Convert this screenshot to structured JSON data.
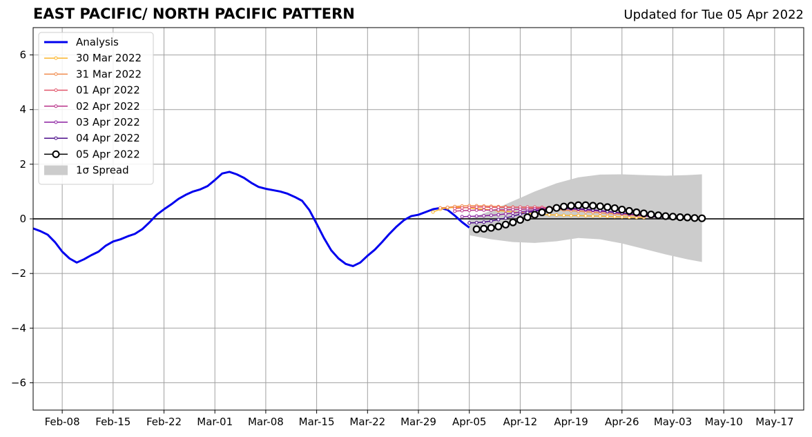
{
  "header": {
    "title": "EAST PACIFIC/ NORTH PACIFIC PATTERN",
    "updated": "Updated for Tue 05 Apr 2022"
  },
  "chart_data": {
    "type": "line",
    "title": "EAST PACIFIC/ NORTH PACIFIC PATTERN",
    "xlabel": "",
    "ylabel": "",
    "xlim": [
      "2022-02-04",
      "2022-05-21"
    ],
    "ylim": [
      -7,
      7
    ],
    "grid": true,
    "legend_position": "upper-left",
    "x_ticks": [
      "Feb-08",
      "Feb-15",
      "Feb-22",
      "Mar-01",
      "Mar-08",
      "Mar-15",
      "Mar-22",
      "Mar-29",
      "Apr-05",
      "Apr-12",
      "Apr-19",
      "Apr-26",
      "May-03",
      "May-10",
      "May-17"
    ],
    "x_tick_dates": [
      "2022-02-08",
      "2022-02-15",
      "2022-02-22",
      "2022-03-01",
      "2022-03-08",
      "2022-03-15",
      "2022-03-22",
      "2022-03-29",
      "2022-04-05",
      "2022-04-12",
      "2022-04-19",
      "2022-04-26",
      "2022-05-03",
      "2022-05-10",
      "2022-05-17"
    ],
    "y_ticks": [
      -6,
      -4,
      -2,
      0,
      2,
      4,
      6
    ],
    "y_tick_labels": [
      "−6",
      "−4",
      "−2",
      "0",
      "2",
      "4",
      "6"
    ],
    "zero_line": true,
    "analysis": {
      "name": "Analysis",
      "color": "#0000ee",
      "x": [
        "2022-02-04",
        "2022-02-05",
        "2022-02-06",
        "2022-02-07",
        "2022-02-08",
        "2022-02-09",
        "2022-02-10",
        "2022-02-11",
        "2022-02-12",
        "2022-02-13",
        "2022-02-14",
        "2022-02-15",
        "2022-02-16",
        "2022-02-17",
        "2022-02-18",
        "2022-02-19",
        "2022-02-20",
        "2022-02-21",
        "2022-02-22",
        "2022-02-23",
        "2022-02-24",
        "2022-02-25",
        "2022-02-26",
        "2022-02-27",
        "2022-02-28",
        "2022-03-01",
        "2022-03-02",
        "2022-03-03",
        "2022-03-04",
        "2022-03-05",
        "2022-03-06",
        "2022-03-07",
        "2022-03-08",
        "2022-03-09",
        "2022-03-10",
        "2022-03-11",
        "2022-03-12",
        "2022-03-13",
        "2022-03-14",
        "2022-03-15",
        "2022-03-16",
        "2022-03-17",
        "2022-03-18",
        "2022-03-19",
        "2022-03-20",
        "2022-03-21",
        "2022-03-22",
        "2022-03-23",
        "2022-03-24",
        "2022-03-25",
        "2022-03-26",
        "2022-03-27",
        "2022-03-28",
        "2022-03-29",
        "2022-03-30",
        "2022-03-31",
        "2022-04-01",
        "2022-04-02",
        "2022-04-03",
        "2022-04-04",
        "2022-04-05"
      ],
      "y": [
        -0.35,
        -0.45,
        -0.58,
        -0.85,
        -1.2,
        -1.45,
        -1.6,
        -1.48,
        -1.33,
        -1.2,
        -0.98,
        -0.83,
        -0.75,
        -0.64,
        -0.55,
        -0.38,
        -0.13,
        0.15,
        0.35,
        0.53,
        0.73,
        0.88,
        1.0,
        1.08,
        1.2,
        1.42,
        1.66,
        1.72,
        1.63,
        1.5,
        1.32,
        1.17,
        1.1,
        1.05,
        1.0,
        0.92,
        0.8,
        0.66,
        0.32,
        -0.18,
        -0.7,
        -1.15,
        -1.45,
        -1.65,
        -1.73,
        -1.6,
        -1.35,
        -1.13,
        -0.85,
        -0.55,
        -0.28,
        -0.05,
        0.1,
        0.15,
        0.25,
        0.35,
        0.4,
        0.33,
        0.12,
        -0.12,
        -0.32
      ]
    },
    "forecasts": [
      {
        "name": "30 Mar 2022",
        "color": "#fbb52b",
        "x": [
          "2022-03-31",
          "2022-04-01",
          "2022-04-02",
          "2022-04-03",
          "2022-04-04",
          "2022-04-05",
          "2022-04-06",
          "2022-04-07",
          "2022-04-08",
          "2022-04-09",
          "2022-04-10",
          "2022-04-11",
          "2022-04-12",
          "2022-04-13",
          "2022-04-14",
          "2022-04-15",
          "2022-04-16",
          "2022-04-17",
          "2022-04-18",
          "2022-04-19",
          "2022-04-20",
          "2022-04-21",
          "2022-04-22",
          "2022-04-23",
          "2022-04-24",
          "2022-04-25",
          "2022-04-26",
          "2022-04-27",
          "2022-04-28",
          "2022-04-29"
        ],
        "y": [
          0.25,
          0.35,
          0.4,
          0.42,
          0.42,
          0.4,
          0.37,
          0.35,
          0.33,
          0.3,
          0.28,
          0.25,
          0.23,
          0.2,
          0.18,
          0.16,
          0.15,
          0.14,
          0.13,
          0.12,
          0.12,
          0.11,
          0.1,
          0.1,
          0.09,
          0.08,
          0.07,
          0.06,
          0.05,
          0.05
        ]
      },
      {
        "name": "31 Mar 2022",
        "color": "#f08a4b",
        "x": [
          "2022-04-01",
          "2022-04-02",
          "2022-04-03",
          "2022-04-04",
          "2022-04-05",
          "2022-04-06",
          "2022-04-07",
          "2022-04-08",
          "2022-04-09",
          "2022-04-10",
          "2022-04-11",
          "2022-04-12",
          "2022-04-13",
          "2022-04-14",
          "2022-04-15",
          "2022-04-16",
          "2022-04-17",
          "2022-04-18",
          "2022-04-19",
          "2022-04-20",
          "2022-04-21",
          "2022-04-22",
          "2022-04-23",
          "2022-04-24",
          "2022-04-25",
          "2022-04-26",
          "2022-04-27",
          "2022-04-28",
          "2022-04-29",
          "2022-04-30"
        ],
        "y": [
          0.4,
          0.42,
          0.45,
          0.47,
          0.48,
          0.48,
          0.47,
          0.46,
          0.45,
          0.44,
          0.43,
          0.42,
          0.41,
          0.4,
          0.38,
          0.36,
          0.34,
          0.32,
          0.3,
          0.28,
          0.26,
          0.24,
          0.22,
          0.2,
          0.18,
          0.16,
          0.14,
          0.12,
          0.1,
          0.08
        ]
      },
      {
        "name": "01 Apr 2022",
        "color": "#e1546a",
        "x": [
          "2022-04-03",
          "2022-04-04",
          "2022-04-05",
          "2022-04-06",
          "2022-04-07",
          "2022-04-08",
          "2022-04-09",
          "2022-04-10",
          "2022-04-11",
          "2022-04-12",
          "2022-04-13",
          "2022-04-14",
          "2022-04-15",
          "2022-04-16",
          "2022-04-17",
          "2022-04-18",
          "2022-04-19",
          "2022-04-20",
          "2022-04-21",
          "2022-04-22",
          "2022-04-23",
          "2022-04-24",
          "2022-04-25",
          "2022-04-26",
          "2022-04-27",
          "2022-04-28",
          "2022-04-29",
          "2022-04-30"
        ],
        "y": [
          0.38,
          0.4,
          0.42,
          0.43,
          0.43,
          0.42,
          0.42,
          0.42,
          0.42,
          0.43,
          0.43,
          0.43,
          0.42,
          0.41,
          0.4,
          0.38,
          0.36,
          0.34,
          0.32,
          0.3,
          0.28,
          0.26,
          0.23,
          0.2,
          0.17,
          0.14,
          0.11,
          0.08
        ]
      },
      {
        "name": "02 Apr 2022",
        "color": "#b83289",
        "x": [
          "2022-04-03",
          "2022-04-04",
          "2022-04-05",
          "2022-04-06",
          "2022-04-07",
          "2022-04-08",
          "2022-04-09",
          "2022-04-10",
          "2022-04-11",
          "2022-04-12",
          "2022-04-13",
          "2022-04-14",
          "2022-04-15",
          "2022-04-16",
          "2022-04-17",
          "2022-04-18",
          "2022-04-19",
          "2022-04-20",
          "2022-04-21",
          "2022-04-22",
          "2022-04-23",
          "2022-04-24",
          "2022-04-25",
          "2022-04-26",
          "2022-04-27",
          "2022-04-28",
          "2022-04-29",
          "2022-04-30"
        ],
        "y": [
          0.28,
          0.3,
          0.31,
          0.32,
          0.32,
          0.32,
          0.33,
          0.33,
          0.34,
          0.35,
          0.36,
          0.37,
          0.38,
          0.38,
          0.38,
          0.37,
          0.36,
          0.35,
          0.33,
          0.31,
          0.29,
          0.26,
          0.23,
          0.2,
          0.17,
          0.14,
          0.11,
          0.08
        ]
      },
      {
        "name": "03 Apr 2022",
        "color": "#8b1fa0",
        "x": [
          "2022-04-04",
          "2022-04-05",
          "2022-04-06",
          "2022-04-07",
          "2022-04-08",
          "2022-04-09",
          "2022-04-10",
          "2022-04-11",
          "2022-04-12",
          "2022-04-13",
          "2022-04-14",
          "2022-04-15",
          "2022-04-16",
          "2022-04-17",
          "2022-04-18",
          "2022-04-19",
          "2022-04-20",
          "2022-04-21",
          "2022-04-22",
          "2022-04-23",
          "2022-04-24",
          "2022-04-25",
          "2022-04-26",
          "2022-04-27",
          "2022-04-28",
          "2022-04-29",
          "2022-04-30",
          "2022-05-01"
        ],
        "y": [
          0.08,
          0.09,
          0.1,
          0.11,
          0.13,
          0.15,
          0.18,
          0.21,
          0.25,
          0.28,
          0.31,
          0.34,
          0.36,
          0.37,
          0.37,
          0.37,
          0.36,
          0.34,
          0.32,
          0.3,
          0.27,
          0.24,
          0.21,
          0.18,
          0.15,
          0.12,
          0.09,
          0.06
        ]
      },
      {
        "name": "04 Apr 2022",
        "color": "#4b0c8a",
        "x": [
          "2022-04-05",
          "2022-04-06",
          "2022-04-07",
          "2022-04-08",
          "2022-04-09",
          "2022-04-10",
          "2022-04-11",
          "2022-04-12",
          "2022-04-13",
          "2022-04-14",
          "2022-04-15",
          "2022-04-16",
          "2022-04-17",
          "2022-04-18",
          "2022-04-19",
          "2022-04-20",
          "2022-04-21",
          "2022-04-22",
          "2022-04-23",
          "2022-04-24",
          "2022-04-25",
          "2022-04-26",
          "2022-04-27",
          "2022-04-28",
          "2022-04-29",
          "2022-04-30",
          "2022-05-01",
          "2022-05-02"
        ],
        "y": [
          -0.15,
          -0.14,
          -0.12,
          -0.08,
          -0.03,
          0.03,
          0.1,
          0.17,
          0.23,
          0.28,
          0.32,
          0.35,
          0.37,
          0.38,
          0.38,
          0.37,
          0.35,
          0.33,
          0.3,
          0.27,
          0.24,
          0.21,
          0.18,
          0.15,
          0.12,
          0.09,
          0.07,
          0.05
        ]
      }
    ],
    "current_forecast": {
      "name": "05 Apr 2022",
      "color": "#000000",
      "x": [
        "2022-04-06",
        "2022-04-07",
        "2022-04-08",
        "2022-04-09",
        "2022-04-10",
        "2022-04-11",
        "2022-04-12",
        "2022-04-13",
        "2022-04-14",
        "2022-04-15",
        "2022-04-16",
        "2022-04-17",
        "2022-04-18",
        "2022-04-19",
        "2022-04-20",
        "2022-04-21",
        "2022-04-22",
        "2022-04-23",
        "2022-04-24",
        "2022-04-25",
        "2022-04-26",
        "2022-04-27",
        "2022-04-28",
        "2022-04-29",
        "2022-04-30",
        "2022-05-01",
        "2022-05-02",
        "2022-05-03",
        "2022-05-04",
        "2022-05-05",
        "2022-05-06",
        "2022-05-07"
      ],
      "y": [
        -0.38,
        -0.36,
        -0.33,
        -0.28,
        -0.21,
        -0.13,
        -0.04,
        0.06,
        0.15,
        0.24,
        0.33,
        0.4,
        0.45,
        0.48,
        0.5,
        0.5,
        0.48,
        0.46,
        0.43,
        0.39,
        0.34,
        0.29,
        0.24,
        0.2,
        0.16,
        0.13,
        0.1,
        0.08,
        0.06,
        0.05,
        0.03,
        0.02
      ]
    },
    "spread": {
      "name": "1σ Spread",
      "color": "#cccccc",
      "x": [
        "2022-04-05",
        "2022-04-08",
        "2022-04-11",
        "2022-04-14",
        "2022-04-17",
        "2022-04-20",
        "2022-04-23",
        "2022-04-26",
        "2022-04-29",
        "2022-05-02",
        "2022-05-05",
        "2022-05-07"
      ],
      "upper": [
        0.0,
        0.3,
        0.65,
        1.0,
        1.3,
        1.52,
        1.62,
        1.63,
        1.6,
        1.58,
        1.6,
        1.63
      ],
      "lower": [
        -0.6,
        -0.75,
        -0.85,
        -0.88,
        -0.82,
        -0.7,
        -0.75,
        -0.9,
        -1.1,
        -1.3,
        -1.48,
        -1.58
      ]
    },
    "legend": [
      {
        "label": "Analysis",
        "style": "thick-line",
        "color": "#0000ee"
      },
      {
        "label": "30 Mar 2022",
        "style": "small-marker-line",
        "color": "#fbb52b"
      },
      {
        "label": "31 Mar 2022",
        "style": "small-marker-line",
        "color": "#f08a4b"
      },
      {
        "label": "01 Apr 2022",
        "style": "small-marker-line",
        "color": "#e1546a"
      },
      {
        "label": "02 Apr 2022",
        "style": "small-marker-line",
        "color": "#b83289"
      },
      {
        "label": "03 Apr 2022",
        "style": "small-marker-line",
        "color": "#8b1fa0"
      },
      {
        "label": "04 Apr 2022",
        "style": "small-marker-line",
        "color": "#4b0c8a"
      },
      {
        "label": "05 Apr 2022",
        "style": "large-marker-line",
        "color": "#000000"
      },
      {
        "label": "1σ Spread",
        "style": "patch",
        "color": "#cccccc"
      }
    ]
  }
}
